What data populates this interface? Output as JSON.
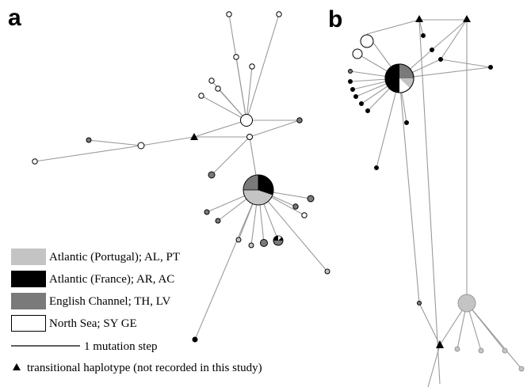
{
  "panels": {
    "a": "a",
    "b": "b"
  },
  "legend": {
    "items": [
      {
        "label": "Atlantic (Portugal); AL, PT",
        "color": "#c4c4c4"
      },
      {
        "label": "Atlantic (France); AR, AC",
        "color": "#000000"
      },
      {
        "label": "English Channel; TH, LV",
        "color": "#7a7a7a"
      },
      {
        "label": "North Sea; SY GE",
        "color": "#ffffff"
      }
    ],
    "mutation_step": "1 mutation step",
    "transitional": "transitional haplotype (not recorded in this study)"
  }
}
